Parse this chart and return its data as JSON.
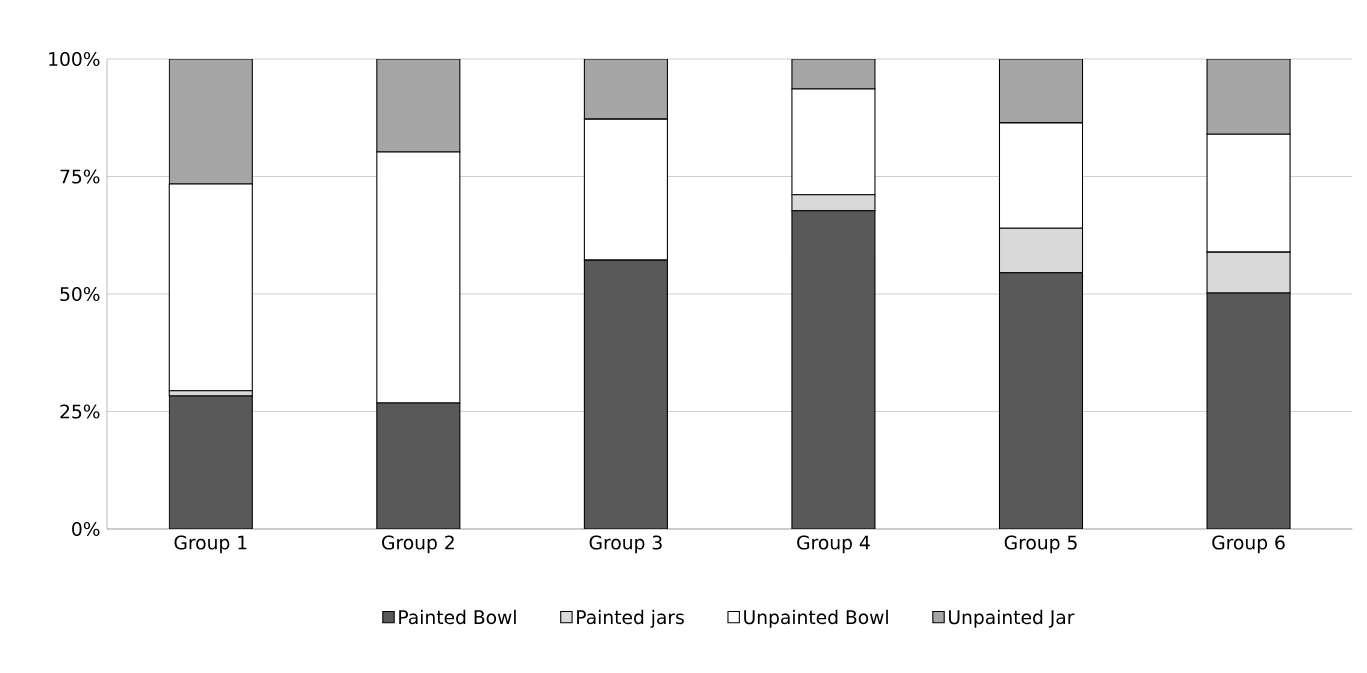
{
  "chart_data": {
    "type": "bar",
    "stacked": true,
    "categories": [
      "Group 1",
      "Group 2",
      "Group 3",
      "Group 4",
      "Group 5",
      "Group 6"
    ],
    "series": [
      {
        "name": "Painted Bowl",
        "color": "#595959",
        "values": [
          28.3,
          26.8,
          57.2,
          67.7,
          54.5,
          50.2
        ]
      },
      {
        "name": "Painted jars",
        "color": "#d9d9d9",
        "values": [
          1.1,
          null,
          null,
          3.4,
          9.5,
          8.7
        ]
      },
      {
        "name": "Unpainted Bowl",
        "color": "#ffffff",
        "values": [
          44.0,
          53.4,
          30.0,
          22.5,
          22.4,
          25.1
        ]
      },
      {
        "name": "Unpainted Jar",
        "color": "#a6a6a6",
        "values": [
          26.6,
          19.8,
          12.8,
          6.4,
          13.6,
          16.0
        ]
      }
    ],
    "ylim": [
      0,
      100
    ],
    "yticks": [
      {
        "value": 0,
        "label": "0%"
      },
      {
        "value": 25,
        "label": "25%"
      },
      {
        "value": 50,
        "label": "50%"
      },
      {
        "value": 75,
        "label": "75%"
      },
      {
        "value": 100,
        "label": "100%"
      }
    ],
    "grid": "y",
    "legend": "bottom"
  }
}
